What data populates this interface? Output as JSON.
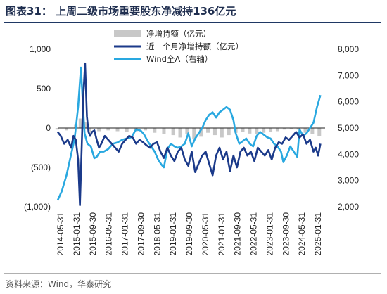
{
  "figure": {
    "title": "图表31：  上周二级市场重要股东净减持136亿元",
    "source": "资料来源：Wind，华泰研究"
  },
  "chart_data": {
    "type": "line",
    "xlabel": "",
    "ylabel": "",
    "x_tick_labels": [
      "2014-05-31",
      "2015-01-31",
      "2015-09-30",
      "2016-05-31",
      "2017-01-31",
      "2017-09-30",
      "2018-05-31",
      "2019-01-31",
      "2019-09-30",
      "2020-05-31",
      "2021-01-31",
      "2021-09-30",
      "2022-05-31",
      "2023-01-31",
      "2023-09-30",
      "2024-05-31",
      "2025-01-31"
    ],
    "y_left": {
      "min": -1000,
      "max": 1000,
      "ticks": [
        -1000,
        -500,
        0,
        500,
        1000
      ],
      "tick_labels": [
        "(1,000)",
        "(500)",
        "0",
        "500",
        "1,000"
      ]
    },
    "y_right": {
      "min": 2000,
      "max": 8000,
      "ticks": [
        2000,
        3000,
        4000,
        5000,
        6000,
        7000,
        8000
      ],
      "tick_labels": [
        "2,000",
        "3,000",
        "4,000",
        "5,000",
        "6,000",
        "7,000",
        "8,000"
      ]
    },
    "legend_position": "top-right",
    "grid": false,
    "series": [
      {
        "name": "净增持额（亿元）",
        "kind": "bar",
        "axis": "left",
        "color": "#c8c8c8",
        "x": [
          2014.4,
          2014.8,
          2015.2,
          2015.4,
          2015.6,
          2015.8,
          2016.2,
          2016.6,
          2017.0,
          2017.4,
          2017.8,
          2018.2,
          2018.6,
          2019.0,
          2019.4,
          2019.7,
          2020.0,
          2020.3,
          2020.6,
          2020.9,
          2021.2,
          2021.5,
          2021.8,
          2022.1,
          2022.4,
          2022.7,
          2023.0,
          2023.3,
          2023.6,
          2023.9,
          2024.2,
          2024.5,
          2024.8,
          2025.1,
          2025.4,
          2025.7
        ],
        "values": [
          -20,
          -30,
          40,
          120,
          80,
          -60,
          -40,
          -30,
          -40,
          -50,
          -40,
          -30,
          -60,
          -80,
          -90,
          -120,
          -80,
          -140,
          -110,
          -60,
          -90,
          -120,
          -90,
          -60,
          -50,
          -70,
          -80,
          -60,
          -50,
          -40,
          -20,
          -10,
          -20,
          -60,
          -80,
          -100
        ]
      },
      {
        "name": "近一个月净增持额（亿元）",
        "kind": "line",
        "axis": "left",
        "color": "#1b3a8a",
        "x": [
          2014.42,
          2014.55,
          2014.7,
          2014.85,
          2015.0,
          2015.1,
          2015.2,
          2015.3,
          2015.38,
          2015.45,
          2015.52,
          2015.6,
          2015.68,
          2015.75,
          2015.82,
          2015.9,
          2016.0,
          2016.1,
          2016.2,
          2016.3,
          2016.45,
          2016.6,
          2016.75,
          2016.9,
          2017.05,
          2017.2,
          2017.35,
          2017.5,
          2017.65,
          2017.8,
          2017.95,
          2018.1,
          2018.25,
          2018.4,
          2018.55,
          2018.7,
          2018.85,
          2019.0,
          2019.15,
          2019.3,
          2019.45,
          2019.6,
          2019.75,
          2019.9,
          2020.05,
          2020.2,
          2020.35,
          2020.5,
          2020.65,
          2020.8,
          2020.95,
          2021.1,
          2021.25,
          2021.4,
          2021.55,
          2021.7,
          2021.85,
          2022.0,
          2022.15,
          2022.3,
          2022.45,
          2022.6,
          2022.75,
          2022.9,
          2023.05,
          2023.2,
          2023.35,
          2023.5,
          2023.65,
          2023.8,
          2023.95,
          2024.1,
          2024.25,
          2024.4,
          2024.55,
          2024.7,
          2024.85,
          2025.0,
          2025.15,
          2025.3,
          2025.45,
          2025.55,
          2025.65,
          2025.75
        ],
        "values": [
          -50,
          -100,
          -200,
          -150,
          -250,
          -100,
          -150,
          -400,
          -980,
          -300,
          400,
          820,
          150,
          -50,
          -100,
          -50,
          -30,
          -150,
          -250,
          -200,
          -100,
          -150,
          -200,
          -250,
          -300,
          -200,
          -150,
          -100,
          -120,
          -200,
          -150,
          -180,
          -220,
          -250,
          -200,
          -180,
          -300,
          -380,
          -250,
          -350,
          -420,
          -300,
          -250,
          -400,
          -480,
          -300,
          -560,
          -450,
          -350,
          -300,
          -450,
          -600,
          -350,
          -250,
          -400,
          -300,
          -550,
          -350,
          -500,
          -300,
          -250,
          -350,
          -300,
          -420,
          -250,
          -300,
          -350,
          -280,
          -400,
          -250,
          -180,
          -200,
          -120,
          -150,
          -100,
          -50,
          -120,
          -80,
          -200,
          -150,
          -300,
          -250,
          -350,
          -200
        ]
      },
      {
        "name": "Wind全A（右轴）",
        "kind": "line",
        "axis": "right",
        "color": "#29a8e0",
        "x": [
          2014.42,
          2014.6,
          2014.8,
          2015.0,
          2015.15,
          2015.3,
          2015.42,
          2015.5,
          2015.58,
          2015.7,
          2015.85,
          2016.0,
          2016.1,
          2016.25,
          2016.4,
          2016.6,
          2016.8,
          2017.0,
          2017.2,
          2017.4,
          2017.6,
          2017.8,
          2018.0,
          2018.15,
          2018.3,
          2018.45,
          2018.6,
          2018.75,
          2018.9,
          2019.0,
          2019.15,
          2019.3,
          2019.45,
          2019.6,
          2019.75,
          2019.9,
          2020.05,
          2020.2,
          2020.35,
          2020.5,
          2020.65,
          2020.8,
          2020.95,
          2021.1,
          2021.25,
          2021.4,
          2021.55,
          2021.7,
          2021.85,
          2022.0,
          2022.1,
          2022.25,
          2022.4,
          2022.55,
          2022.7,
          2022.85,
          2023.0,
          2023.15,
          2023.3,
          2023.45,
          2023.6,
          2023.75,
          2023.9,
          2024.05,
          2024.15,
          2024.3,
          2024.45,
          2024.6,
          2024.75,
          2024.85,
          2025.0,
          2025.15,
          2025.3,
          2025.45,
          2025.6,
          2025.75
        ],
        "values": [
          2250,
          2600,
          3200,
          4000,
          4600,
          5800,
          7300,
          6000,
          4800,
          4400,
          4300,
          3850,
          3900,
          4100,
          4100,
          4200,
          4400,
          4450,
          4550,
          4600,
          4650,
          4950,
          4900,
          4750,
          4500,
          4300,
          4100,
          3800,
          3600,
          3500,
          4200,
          4400,
          4300,
          4250,
          4300,
          4400,
          4800,
          4300,
          4600,
          4800,
          5000,
          5300,
          5500,
          5600,
          5400,
          5600,
          5700,
          5800,
          5700,
          5300,
          4800,
          4400,
          4500,
          4600,
          4400,
          4300,
          4700,
          4850,
          4750,
          4650,
          4600,
          4400,
          4300,
          4100,
          3700,
          3950,
          4300,
          4100,
          3900,
          4950,
          4700,
          4800,
          5000,
          5200,
          5800,
          6250
        ]
      }
    ]
  }
}
